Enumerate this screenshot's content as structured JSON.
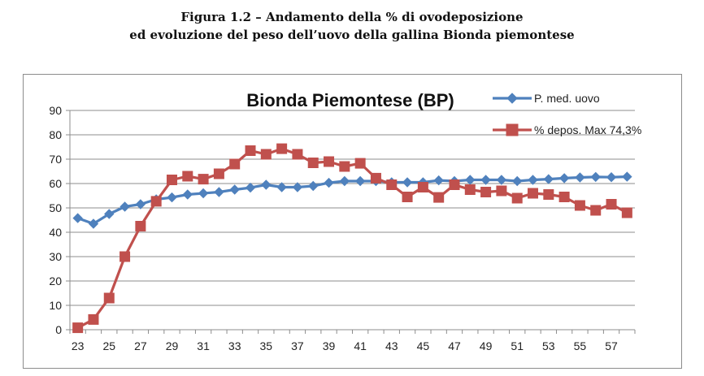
{
  "caption": {
    "line1": "Figura 1.2 – Andamento della % di ovodeposizione",
    "line2": "ed evoluzione del peso dell’uovo della gallina Bionda piemontese"
  },
  "chart_data": {
    "type": "line",
    "title": "Bionda Piemontese (BP)",
    "xlabel": "",
    "ylabel": "",
    "x": [
      23,
      24,
      25,
      26,
      27,
      28,
      29,
      30,
      31,
      32,
      33,
      34,
      35,
      36,
      37,
      38,
      39,
      40,
      41,
      42,
      43,
      44,
      45,
      46,
      47,
      48,
      49,
      50,
      51,
      52,
      53,
      54,
      55,
      56,
      57,
      58
    ],
    "x_tick_labels": [
      "23",
      "25",
      "27",
      "29",
      "31",
      "33",
      "35",
      "37",
      "39",
      "41",
      "43",
      "45",
      "47",
      "49",
      "51",
      "53",
      "55",
      "57"
    ],
    "ylim": [
      0,
      90
    ],
    "y_ticks": [
      0,
      10,
      20,
      30,
      40,
      50,
      60,
      70,
      80,
      90
    ],
    "grid": true,
    "legend_position": "top-right",
    "series": [
      {
        "name": "P. med. uovo",
        "color": "#4f81bd",
        "marker": "diamond",
        "values": [
          45.8,
          43.5,
          47.5,
          50.5,
          51.5,
          53.5,
          54.3,
          55.5,
          56,
          56.5,
          57.5,
          58.3,
          59.5,
          58.5,
          58.5,
          59,
          60.3,
          61,
          61,
          61,
          60.5,
          60.5,
          60.5,
          61.3,
          61,
          61.5,
          61.5,
          61.5,
          61,
          61.5,
          61.8,
          62.2,
          62.5,
          62.7,
          62.6,
          62.8
        ]
      },
      {
        "name": "% depos. Max 74,3%",
        "color": "#c0504d",
        "marker": "square",
        "values": [
          0.8,
          4.2,
          13,
          30,
          42.5,
          52.7,
          61.5,
          63,
          61.8,
          64,
          68,
          73.5,
          72,
          74.3,
          72,
          68.5,
          69,
          67,
          68.3,
          62.2,
          59.5,
          54.5,
          58.5,
          54.3,
          59.5,
          57.5,
          56.5,
          57,
          54,
          56,
          55.5,
          54.5,
          51,
          49,
          51.5,
          48
        ]
      }
    ]
  }
}
